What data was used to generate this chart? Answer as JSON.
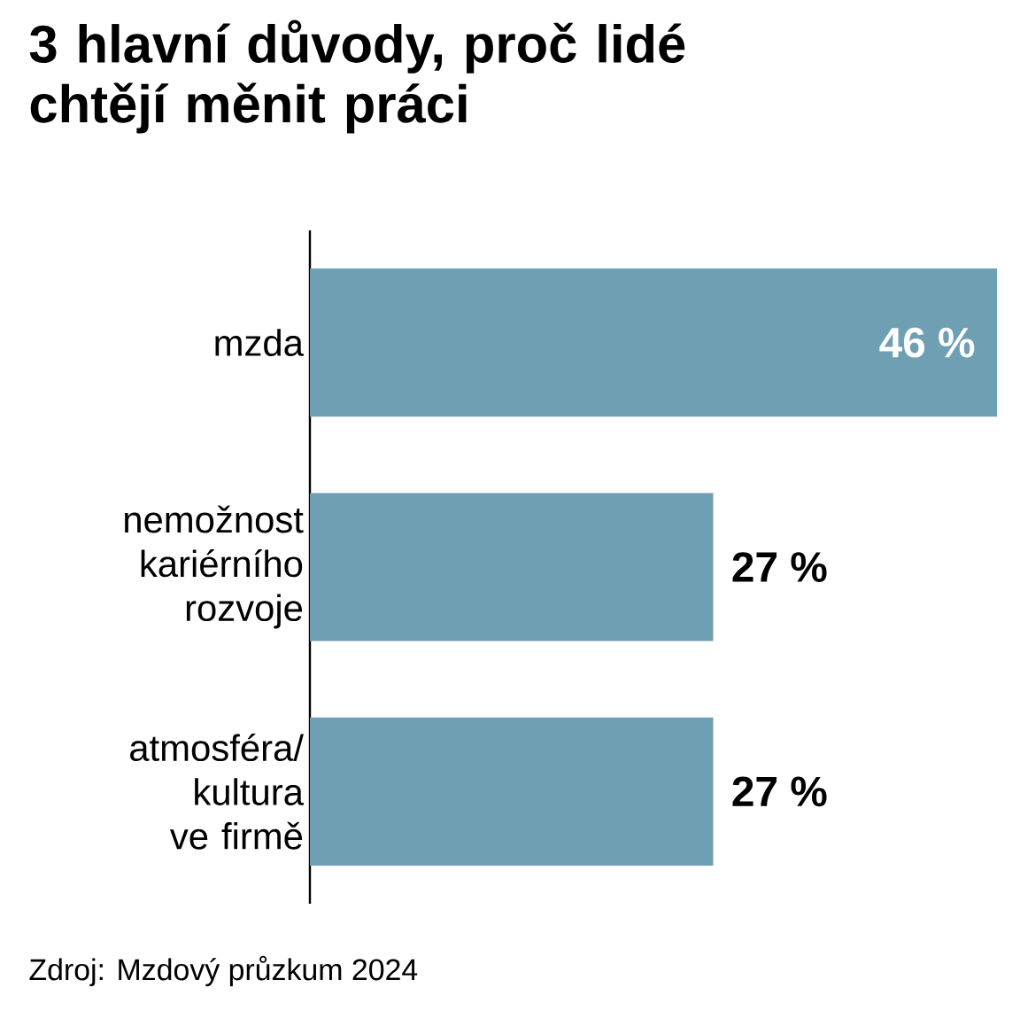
{
  "chart_data": {
    "type": "bar",
    "orientation": "horizontal",
    "title": "3 hlavní důvody, proč lidé chtějí měnit práci",
    "categories": [
      "mzda",
      "nemožnost kariérního rozvoje",
      "atmosféra/ kultura ve firmě"
    ],
    "values": [
      46,
      27,
      27
    ],
    "value_labels": [
      "46 %",
      "27 %",
      "27 %"
    ],
    "color": "#6f9fb3",
    "annotations": [
      "Zdroj: Mzdový průzkum 2024"
    ]
  }
}
